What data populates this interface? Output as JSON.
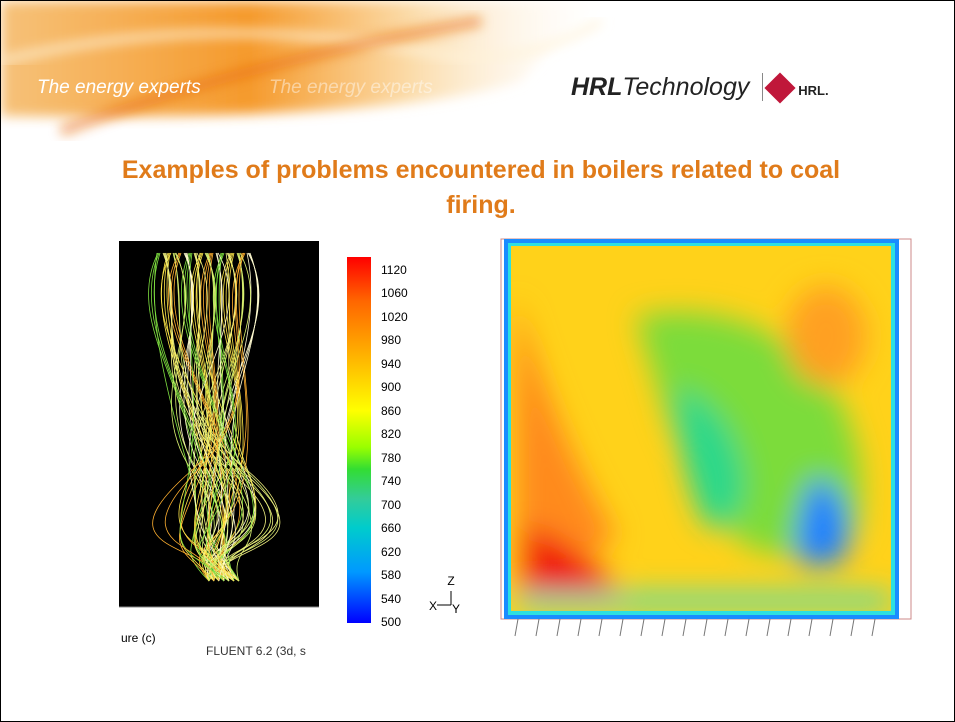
{
  "header": {
    "tagline": "The energy experts",
    "tagline_echo": "The energy experts",
    "logo_bold": "HRL",
    "logo_light": "Technology",
    "logo_badge": "HRL."
  },
  "title": "Examples of problems encountered in boilers related to coal firing.",
  "left_panel": {
    "caption_left": "ure (c)",
    "caption_right": "FLUENT 6.2 (3d, s"
  },
  "colorbar": {
    "labels": [
      1120,
      1060,
      1020,
      980,
      940,
      900,
      860,
      820,
      780,
      740,
      700,
      660,
      620,
      580,
      540,
      500
    ]
  },
  "axes": {
    "z": "Z",
    "x": "X",
    "y": "Y"
  }
}
